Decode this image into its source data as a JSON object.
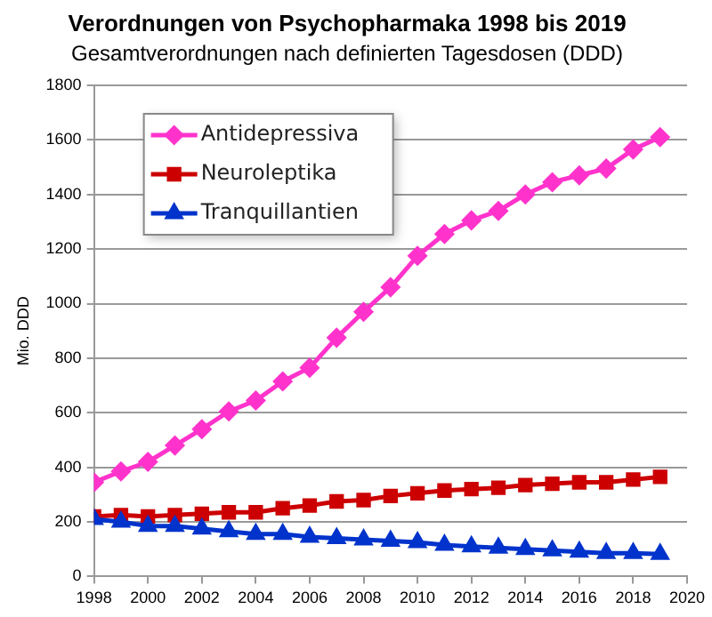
{
  "chart_data": {
    "type": "line",
    "title": "Verordnungen von Psychopharmaka 1998 bis 2019",
    "subtitle": "Gesamtverordnungen nach definierten Tagesdosen (DDD)",
    "ylabel": "Mio. DDD",
    "x": [
      1998,
      1999,
      2000,
      2001,
      2002,
      2003,
      2004,
      2005,
      2006,
      2007,
      2008,
      2009,
      2010,
      2011,
      2012,
      2013,
      2014,
      2015,
      2016,
      2017,
      2018,
      2019
    ],
    "series": [
      {
        "name": "Antidepressiva",
        "color": "#ff33cc",
        "marker": "diamond",
        "values": [
          345,
          385,
          420,
          480,
          540,
          605,
          645,
          715,
          765,
          875,
          970,
          1060,
          1175,
          1255,
          1305,
          1340,
          1400,
          1445,
          1470,
          1495,
          1565,
          1610
        ]
      },
      {
        "name": "Neuroleptika",
        "color": "#cc0000",
        "marker": "square",
        "values": [
          220,
          225,
          220,
          225,
          230,
          235,
          235,
          250,
          260,
          275,
          280,
          295,
          305,
          315,
          320,
          325,
          335,
          340,
          345,
          345,
          355,
          365
        ]
      },
      {
        "name": "Tranquillantien",
        "color": "#0033cc",
        "marker": "triangle",
        "values": [
          210,
          200,
          185,
          185,
          175,
          165,
          155,
          155,
          145,
          140,
          135,
          130,
          125,
          115,
          110,
          105,
          100,
          95,
          90,
          85,
          85,
          82
        ]
      }
    ],
    "xlim": [
      1998,
      2020
    ],
    "xticks": [
      1998,
      2000,
      2002,
      2004,
      2006,
      2008,
      2010,
      2012,
      2014,
      2016,
      2018,
      2020
    ],
    "ylim": [
      0,
      1800
    ],
    "yticks": [
      0,
      200,
      400,
      600,
      800,
      1000,
      1200,
      1400,
      1600,
      1800
    ],
    "grid": "y",
    "legend": "top left"
  }
}
